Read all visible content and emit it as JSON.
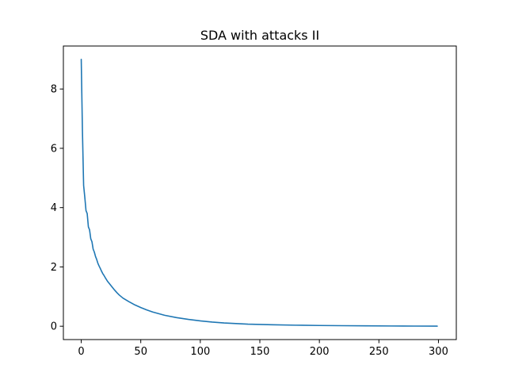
{
  "chart_data": {
    "type": "line",
    "title": "SDA with attacks II",
    "xlabel": "",
    "ylabel": "",
    "xlim": [
      -15,
      315
    ],
    "ylim": [
      -0.45,
      9.45
    ],
    "x_ticks": [
      0,
      50,
      100,
      150,
      200,
      250,
      300
    ],
    "y_ticks": [
      0,
      2,
      4,
      6,
      8
    ],
    "x_tick_labels": [
      "0",
      "50",
      "100",
      "150",
      "200",
      "250",
      "300"
    ],
    "y_tick_labels": [
      "0",
      "2",
      "4",
      "6",
      "8"
    ],
    "grid": false,
    "legend": "none",
    "series": [
      {
        "color": "#1f77b4",
        "x": [
          0,
          1,
          2,
          3,
          4,
          5,
          6,
          7,
          8,
          9,
          10,
          11,
          12,
          13,
          14,
          15,
          16,
          17,
          18,
          19,
          20,
          22,
          24,
          26,
          28,
          30,
          32,
          35,
          40,
          45,
          50,
          55,
          60,
          70,
          80,
          90,
          100,
          110,
          120,
          130,
          140,
          150,
          160,
          180,
          200,
          220,
          240,
          260,
          280,
          299
        ],
        "y": [
          9.0,
          6.6,
          4.75,
          4.35,
          3.9,
          3.8,
          3.35,
          3.25,
          2.95,
          2.85,
          2.6,
          2.5,
          2.35,
          2.25,
          2.12,
          2.03,
          1.95,
          1.86,
          1.78,
          1.72,
          1.65,
          1.52,
          1.42,
          1.32,
          1.22,
          1.13,
          1.05,
          0.95,
          0.83,
          0.72,
          0.63,
          0.55,
          0.48,
          0.37,
          0.29,
          0.23,
          0.18,
          0.14,
          0.11,
          0.09,
          0.07,
          0.06,
          0.05,
          0.035,
          0.025,
          0.018,
          0.012,
          0.008,
          0.005,
          0.003
        ]
      }
    ]
  }
}
